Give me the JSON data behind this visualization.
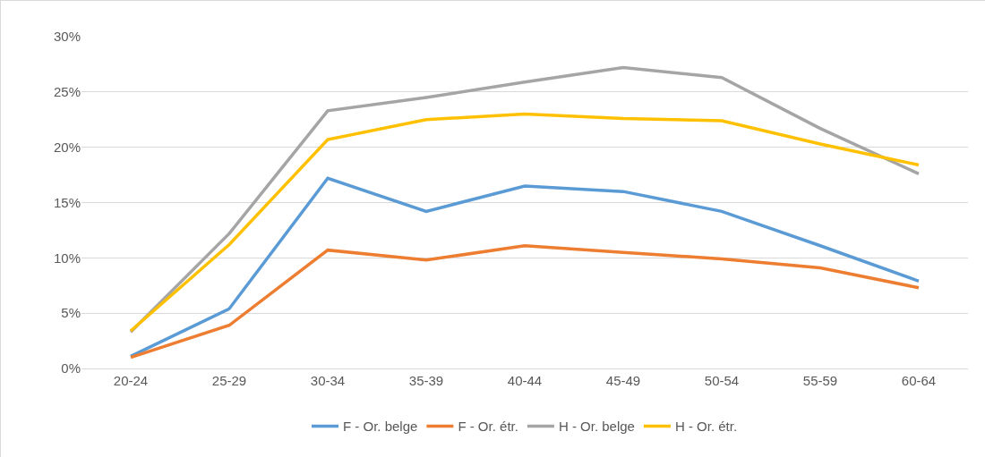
{
  "chart_data": {
    "type": "line",
    "categories": [
      "20-24",
      "25-29",
      "30-34",
      "35-39",
      "40-44",
      "45-49",
      "50-54",
      "55-59",
      "60-64"
    ],
    "series": [
      {
        "name": "F - Or. belge",
        "color": "#5b9bd5",
        "values": [
          1.1,
          5.4,
          17.2,
          14.2,
          16.5,
          16.0,
          14.2,
          11.1,
          7.9
        ]
      },
      {
        "name": "F - Or. étr.",
        "color": "#ed7d31",
        "values": [
          1.0,
          3.9,
          10.7,
          9.8,
          11.1,
          10.5,
          9.9,
          9.1,
          7.3
        ]
      },
      {
        "name": "H - Or. belge",
        "color": "#a5a5a5",
        "values": [
          3.3,
          12.2,
          23.3,
          24.5,
          25.9,
          27.2,
          26.3,
          21.7,
          17.6
        ]
      },
      {
        "name": "H - Or. étr.",
        "color": "#ffc000",
        "values": [
          3.4,
          11.2,
          20.7,
          22.5,
          23.0,
          22.6,
          22.4,
          20.3,
          18.4
        ]
      }
    ],
    "ylim": [
      0,
      30
    ],
    "yticks": [
      {
        "value": 0,
        "label": "0%"
      },
      {
        "value": 5,
        "label": "5%"
      },
      {
        "value": 10,
        "label": "10%"
      },
      {
        "value": 15,
        "label": "15%"
      },
      {
        "value": 20,
        "label": "20%"
      },
      {
        "value": 25,
        "label": "25%"
      },
      {
        "value": 30,
        "label": "30%"
      }
    ],
    "grid": "y",
    "legend": "bottom",
    "marker": "none",
    "line_style": "solid"
  }
}
